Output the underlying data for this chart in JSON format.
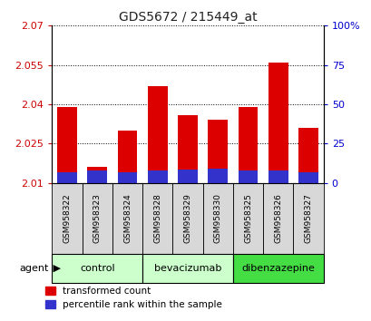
{
  "title": "GDS5672 / 215449_at",
  "samples": [
    "GSM958322",
    "GSM958323",
    "GSM958324",
    "GSM958328",
    "GSM958329",
    "GSM958330",
    "GSM958325",
    "GSM958326",
    "GSM958327"
  ],
  "transformed_count": [
    2.039,
    2.016,
    2.03,
    2.047,
    2.036,
    2.034,
    2.039,
    2.056,
    2.031
  ],
  "percentile_rank": [
    7.0,
    8.0,
    7.0,
    8.0,
    8.5,
    9.0,
    8.0,
    8.0,
    7.0
  ],
  "ylim_left": [
    2.01,
    2.07
  ],
  "ylim_right": [
    0,
    100
  ],
  "yticks_left": [
    2.01,
    2.025,
    2.04,
    2.055,
    2.07
  ],
  "yticks_right": [
    0,
    25,
    50,
    75,
    100
  ],
  "baseline": 2.01,
  "bar_color_red": "#dd0000",
  "bar_color_blue": "#3333cc",
  "title_color": "#222222",
  "left_tick_color": "#cc0000",
  "right_tick_color": "#0000cc",
  "group_configs": [
    {
      "label": "control",
      "start": 0,
      "end": 2,
      "color": "#ccffcc"
    },
    {
      "label": "bevacizumab",
      "start": 3,
      "end": 5,
      "color": "#ccffcc"
    },
    {
      "label": "dibenzazepine",
      "start": 6,
      "end": 8,
      "color": "#44dd44"
    }
  ],
  "legend_red": "transformed count",
  "legend_blue": "percentile rank within the sample",
  "bar_width": 0.65,
  "xlabel_fontsize": 7,
  "tick_label_gray": "#cccccc",
  "sample_box_color": "#cccccc"
}
